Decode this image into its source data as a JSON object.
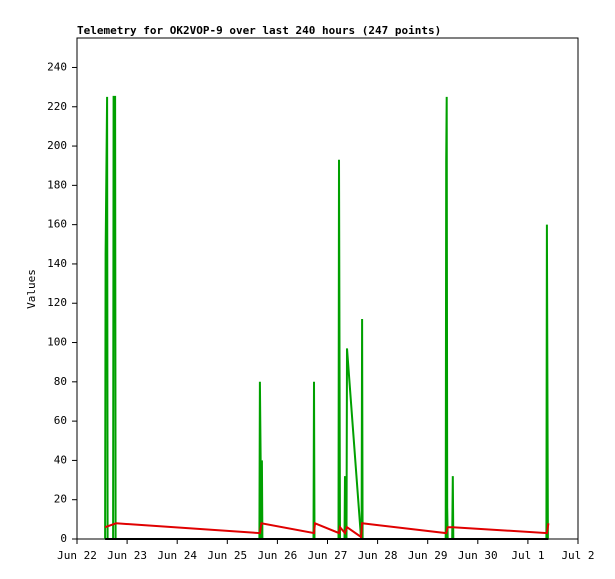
{
  "chart_data": {
    "type": "line",
    "title": "Telemetry for OK2VOP-9 over last 240 hours (247 points)",
    "y_label": "Values",
    "xlim": [
      0,
      10
    ],
    "xticks": [
      {
        "value": 0,
        "label": "Jun 22"
      },
      {
        "value": 1,
        "label": "Jun 23"
      },
      {
        "value": 2,
        "label": "Jun 24"
      },
      {
        "value": 3,
        "label": "Jun 25"
      },
      {
        "value": 4,
        "label": "Jun 26"
      },
      {
        "value": 5,
        "label": "Jun 27"
      },
      {
        "value": 6,
        "label": "Jun 28"
      },
      {
        "value": 7,
        "label": "Jun 29"
      },
      {
        "value": 8,
        "label": "Jun 30"
      },
      {
        "value": 9,
        "label": "Jul 1"
      },
      {
        "value": 10,
        "label": "Jul 2"
      }
    ],
    "ylim": [
      0,
      255
    ],
    "yticks": [
      0,
      20,
      40,
      60,
      80,
      100,
      120,
      140,
      160,
      180,
      200,
      220,
      240
    ],
    "grid": false,
    "series": [
      {
        "color": "#00a000",
        "x": [
          0.56,
          0.57,
          0.6,
          0.61,
          0.72,
          0.73,
          0.76,
          0.77,
          3.64,
          3.65,
          3.68,
          3.69,
          3.7,
          4.72,
          4.73,
          4.74,
          5.22,
          5.23,
          5.25,
          5.34,
          5.35,
          5.38,
          5.39,
          5.67,
          5.68,
          5.69,
          5.7,
          7.36,
          7.37,
          7.38,
          7.39,
          7.4,
          7.49,
          7.5,
          7.51,
          9.37,
          9.38,
          9.4
        ],
        "values": [
          0,
          145,
          225,
          0,
          0,
          225,
          225,
          0,
          0,
          80,
          0,
          40,
          0,
          0,
          80,
          0,
          0,
          193,
          0,
          0,
          32,
          0,
          97,
          0,
          0,
          112,
          0,
          0,
          192,
          225,
          16,
          0,
          0,
          32,
          0,
          0,
          160,
          0
        ]
      },
      {
        "color": "#e00000",
        "x": [
          0.56,
          0.78,
          3.65,
          3.68,
          4.73,
          4.75,
          5.23,
          5.25,
          5.35,
          5.39,
          5.67,
          5.69,
          7.37,
          7.4,
          7.5,
          9.38,
          9.41
        ],
        "values": [
          6,
          8,
          3,
          8,
          3,
          8,
          3,
          6,
          3,
          6,
          1,
          8,
          3,
          6,
          6,
          3,
          8
        ]
      },
      {
        "color": "#000000",
        "x": [
          0.56,
          9.41
        ],
        "values": [
          0,
          0
        ]
      }
    ]
  }
}
